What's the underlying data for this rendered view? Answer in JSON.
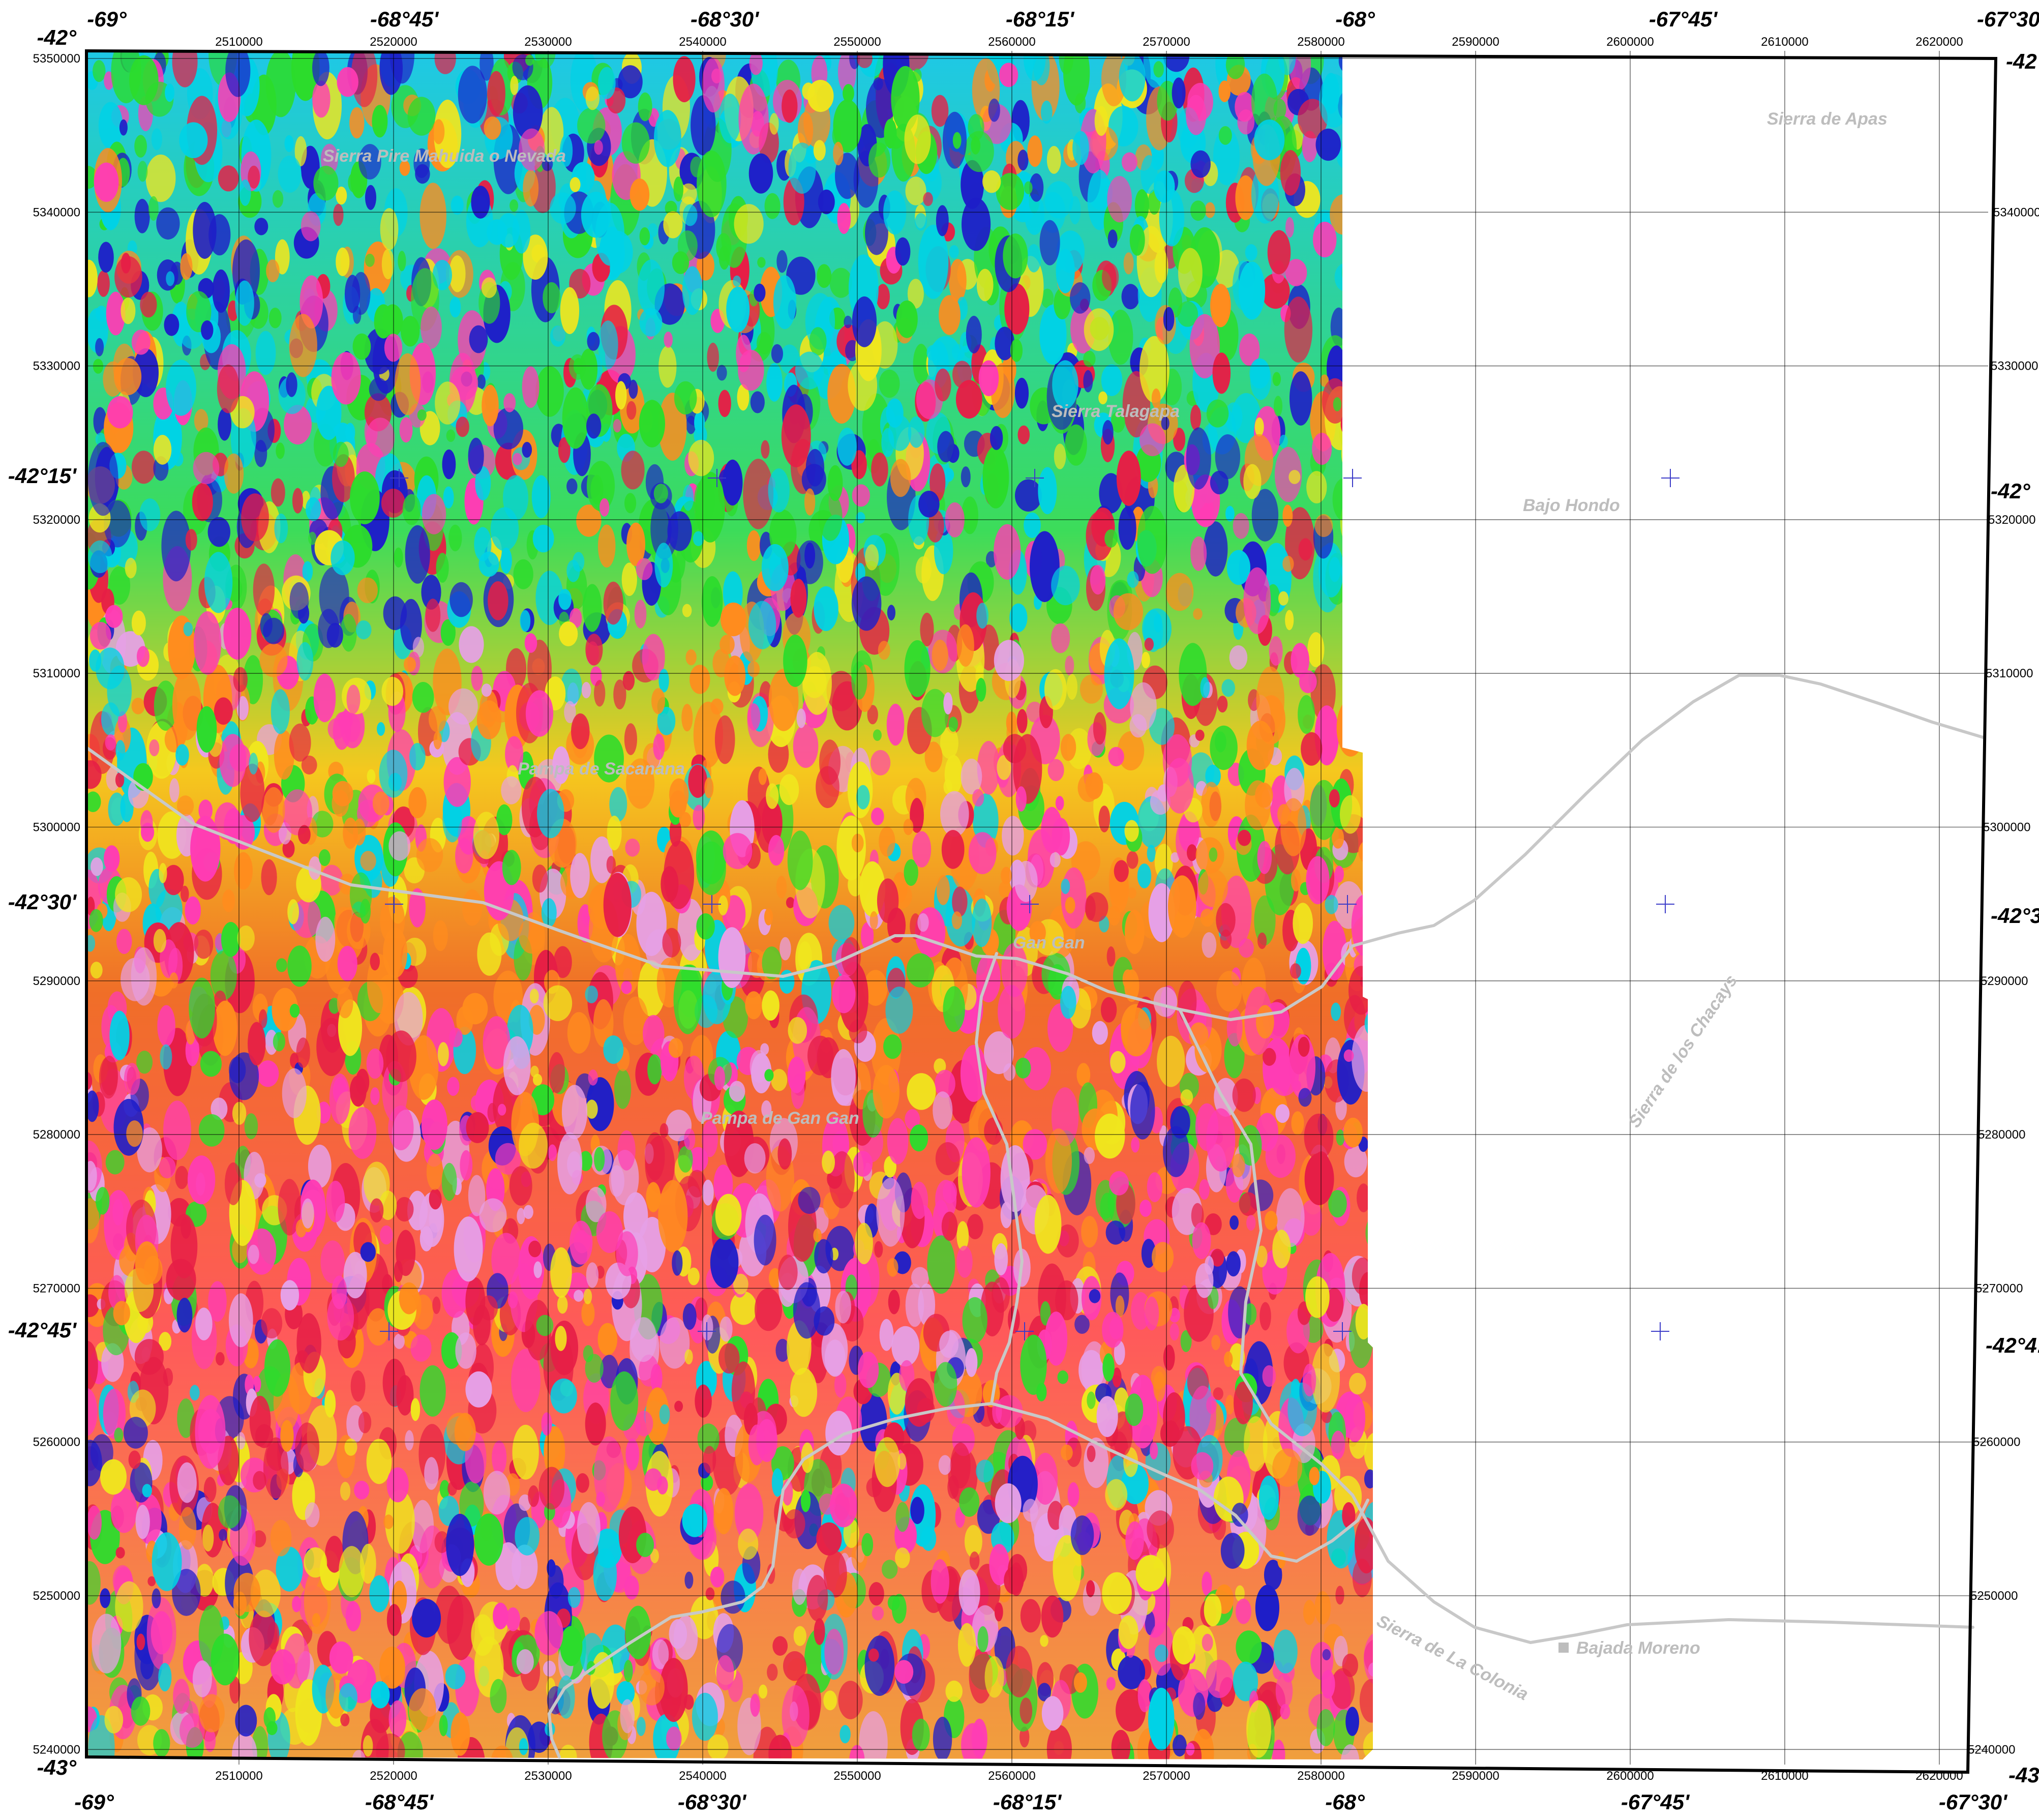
{
  "map": {
    "geo_labels": {
      "top": [
        "-69°",
        "-68°45'",
        "-68°30'",
        "-68°15'",
        "-68°",
        "-67°45'",
        "-67°30'"
      ],
      "bottom": [
        "-69°",
        "-68°45'",
        "-68°30'",
        "-68°15'",
        "-68°",
        "-67°45'",
        "-67°30'"
      ],
      "left": [
        "-42°",
        "-42°15'",
        "-42°30'",
        "-42°45'",
        "-43°"
      ],
      "right": [
        "-42",
        "-42°",
        "-42°3",
        "-42°4:",
        "-43°"
      ]
    },
    "utm_labels": {
      "easting_top": [
        "2510000",
        "2520000",
        "2530000",
        "2540000",
        "2550000",
        "2560000",
        "2570000",
        "2580000",
        "2590000",
        "2600000",
        "2610000",
        "2620000"
      ],
      "easting_bottom": [
        "2510000",
        "2520000",
        "2530000",
        "2540000",
        "2550000",
        "2560000",
        "2570000",
        "2580000",
        "2590000",
        "2600000",
        "2610000",
        "2620000"
      ],
      "northing_left": [
        "5350000",
        "5340000",
        "5330000",
        "5320000",
        "5310000",
        "5300000",
        "5290000",
        "5280000",
        "5270000",
        "5260000",
        "5250000",
        "5240000"
      ],
      "northing_right": [
        "5340000",
        "5330000",
        "5320000",
        "5310000",
        "5300000",
        "5290000",
        "5280000",
        "5270000",
        "5260000",
        "5250000",
        "5240000"
      ]
    },
    "places": [
      "Sierra Pire Mahuida o Nevada",
      "Sierra Talagapa",
      "Sierra de Apas",
      "Bajo Hondo",
      "Pampa de Sacanana",
      "Gan Gan",
      "Pampa de Gan Gan",
      "Sierra de los Chacays",
      "Sierra de La Colonia",
      "Bajada Moreno"
    ],
    "colors": {
      "low": "#1e1ec8",
      "mid_low": "#00d2e6",
      "mid": "#2cdc2c",
      "mid_high": "#f0e61e",
      "high": "#ff8c1e",
      "higher": "#e61e46",
      "peak": "#ff3cb4",
      "max": "#e6a0e6",
      "road": "#c8c8c8",
      "label": "#bdbdbd"
    },
    "symbols": [
      "geo-cross-icon",
      "town-square-icon"
    ]
  }
}
